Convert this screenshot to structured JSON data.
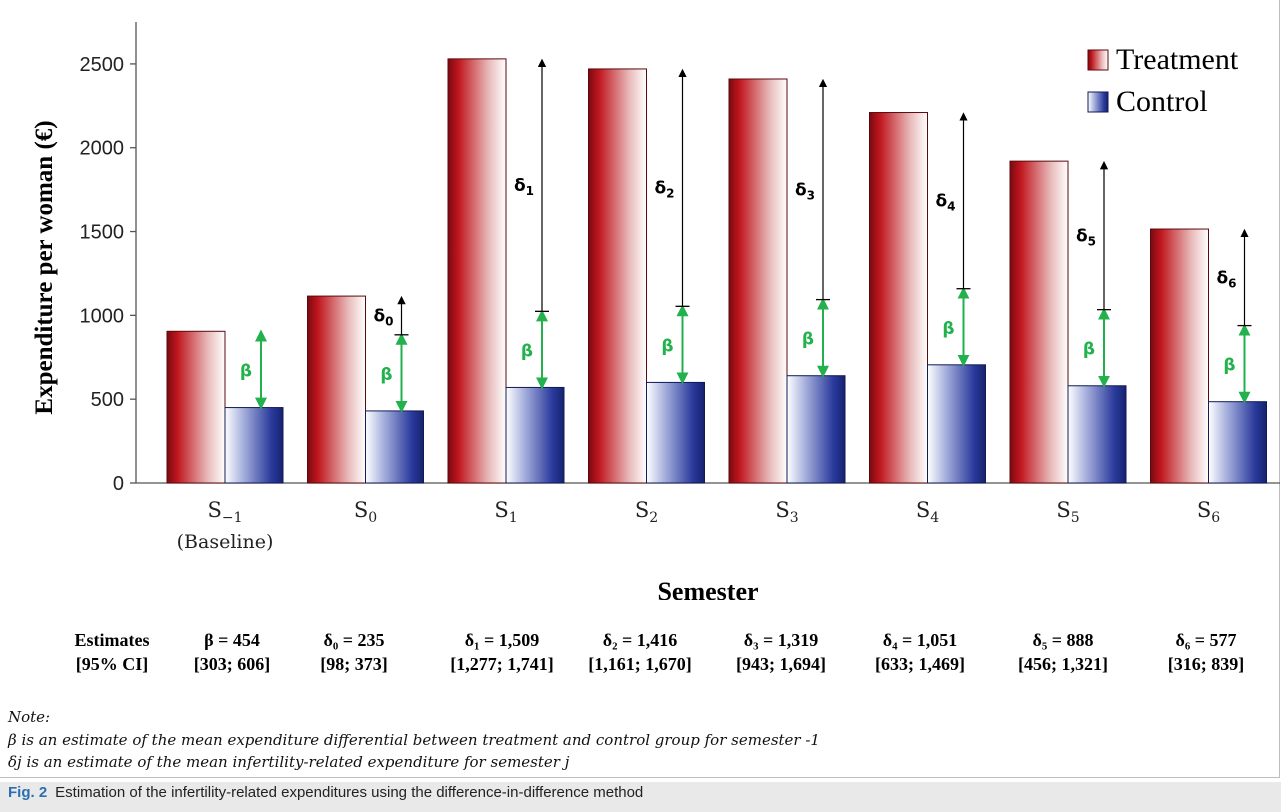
{
  "chart_data": {
    "type": "bar",
    "xlabel": "Semester",
    "ylabel": "Expenditure per woman (€)",
    "ylim": [
      0,
      2750
    ],
    "yticks": [
      0,
      500,
      1000,
      1500,
      2000,
      2500
    ],
    "categories": [
      {
        "main": "S",
        "sub": "−1",
        "extra": "(Baseline)"
      },
      {
        "main": "S",
        "sub": "0",
        "extra": ""
      },
      {
        "main": "S",
        "sub": "1",
        "extra": ""
      },
      {
        "main": "S",
        "sub": "2",
        "extra": ""
      },
      {
        "main": "S",
        "sub": "3",
        "extra": ""
      },
      {
        "main": "S",
        "sub": "4",
        "extra": ""
      },
      {
        "main": "S",
        "sub": "5",
        "extra": ""
      },
      {
        "main": "S",
        "sub": "6",
        "extra": ""
      }
    ],
    "series": [
      {
        "name": "Treatment",
        "color": "#b0101a",
        "values": [
          905,
          1115,
          2530,
          2470,
          2410,
          2210,
          1920,
          1515
        ]
      },
      {
        "name": "Control",
        "color": "#1f2f8c",
        "values": [
          450,
          430,
          570,
          600,
          640,
          705,
          580,
          485
        ]
      }
    ],
    "legend": "top-right",
    "beta": {
      "symbol": "β",
      "color": "#22b14c",
      "value": 454
    },
    "deltas": [
      {
        "symbol": "δ",
        "sub": "0",
        "top": 1115
      },
      {
        "symbol": "δ",
        "sub": "1",
        "top": 2530
      },
      {
        "symbol": "δ",
        "sub": "2",
        "top": 2470
      },
      {
        "symbol": "δ",
        "sub": "3",
        "top": 2410
      },
      {
        "symbol": "δ",
        "sub": "4",
        "top": 2210
      },
      {
        "symbol": "δ",
        "sub": "5",
        "top": 1920
      },
      {
        "symbol": "δ",
        "sub": "6",
        "top": 1515
      }
    ]
  },
  "estimates": {
    "label": "Estimates",
    "ci_label": "[95% CI]",
    "items": [
      {
        "text": "β = 454",
        "ci": "[303; 606]"
      },
      {
        "text": "δ₀ = 235",
        "ci": "[98; 373]"
      },
      {
        "text": "δ₁ = 1,509",
        "ci": "[1,277; 1,741]"
      },
      {
        "text": "δ₂ = 1,416",
        "ci": "[1,161; 1,670]"
      },
      {
        "text": "δ₃ = 1,319",
        "ci": "[943; 1,694]"
      },
      {
        "text": "δ₄ = 1,051",
        "ci": "[633; 1,469]"
      },
      {
        "text": "δ₅ = 888",
        "ci": "[456; 1,321]"
      },
      {
        "text": "δ₆ = 577",
        "ci": "[316; 839]"
      }
    ]
  },
  "notes": {
    "title": "Note:",
    "line1": "β is an estimate of the mean expenditure differential between treatment and control group for semester -1",
    "line2": "δj is an estimate of the mean infertility-related expenditure for semester j"
  },
  "caption": {
    "label": "Fig. 2",
    "text": "Estimation of the infertility-related expenditures using the difference-in-difference method"
  }
}
